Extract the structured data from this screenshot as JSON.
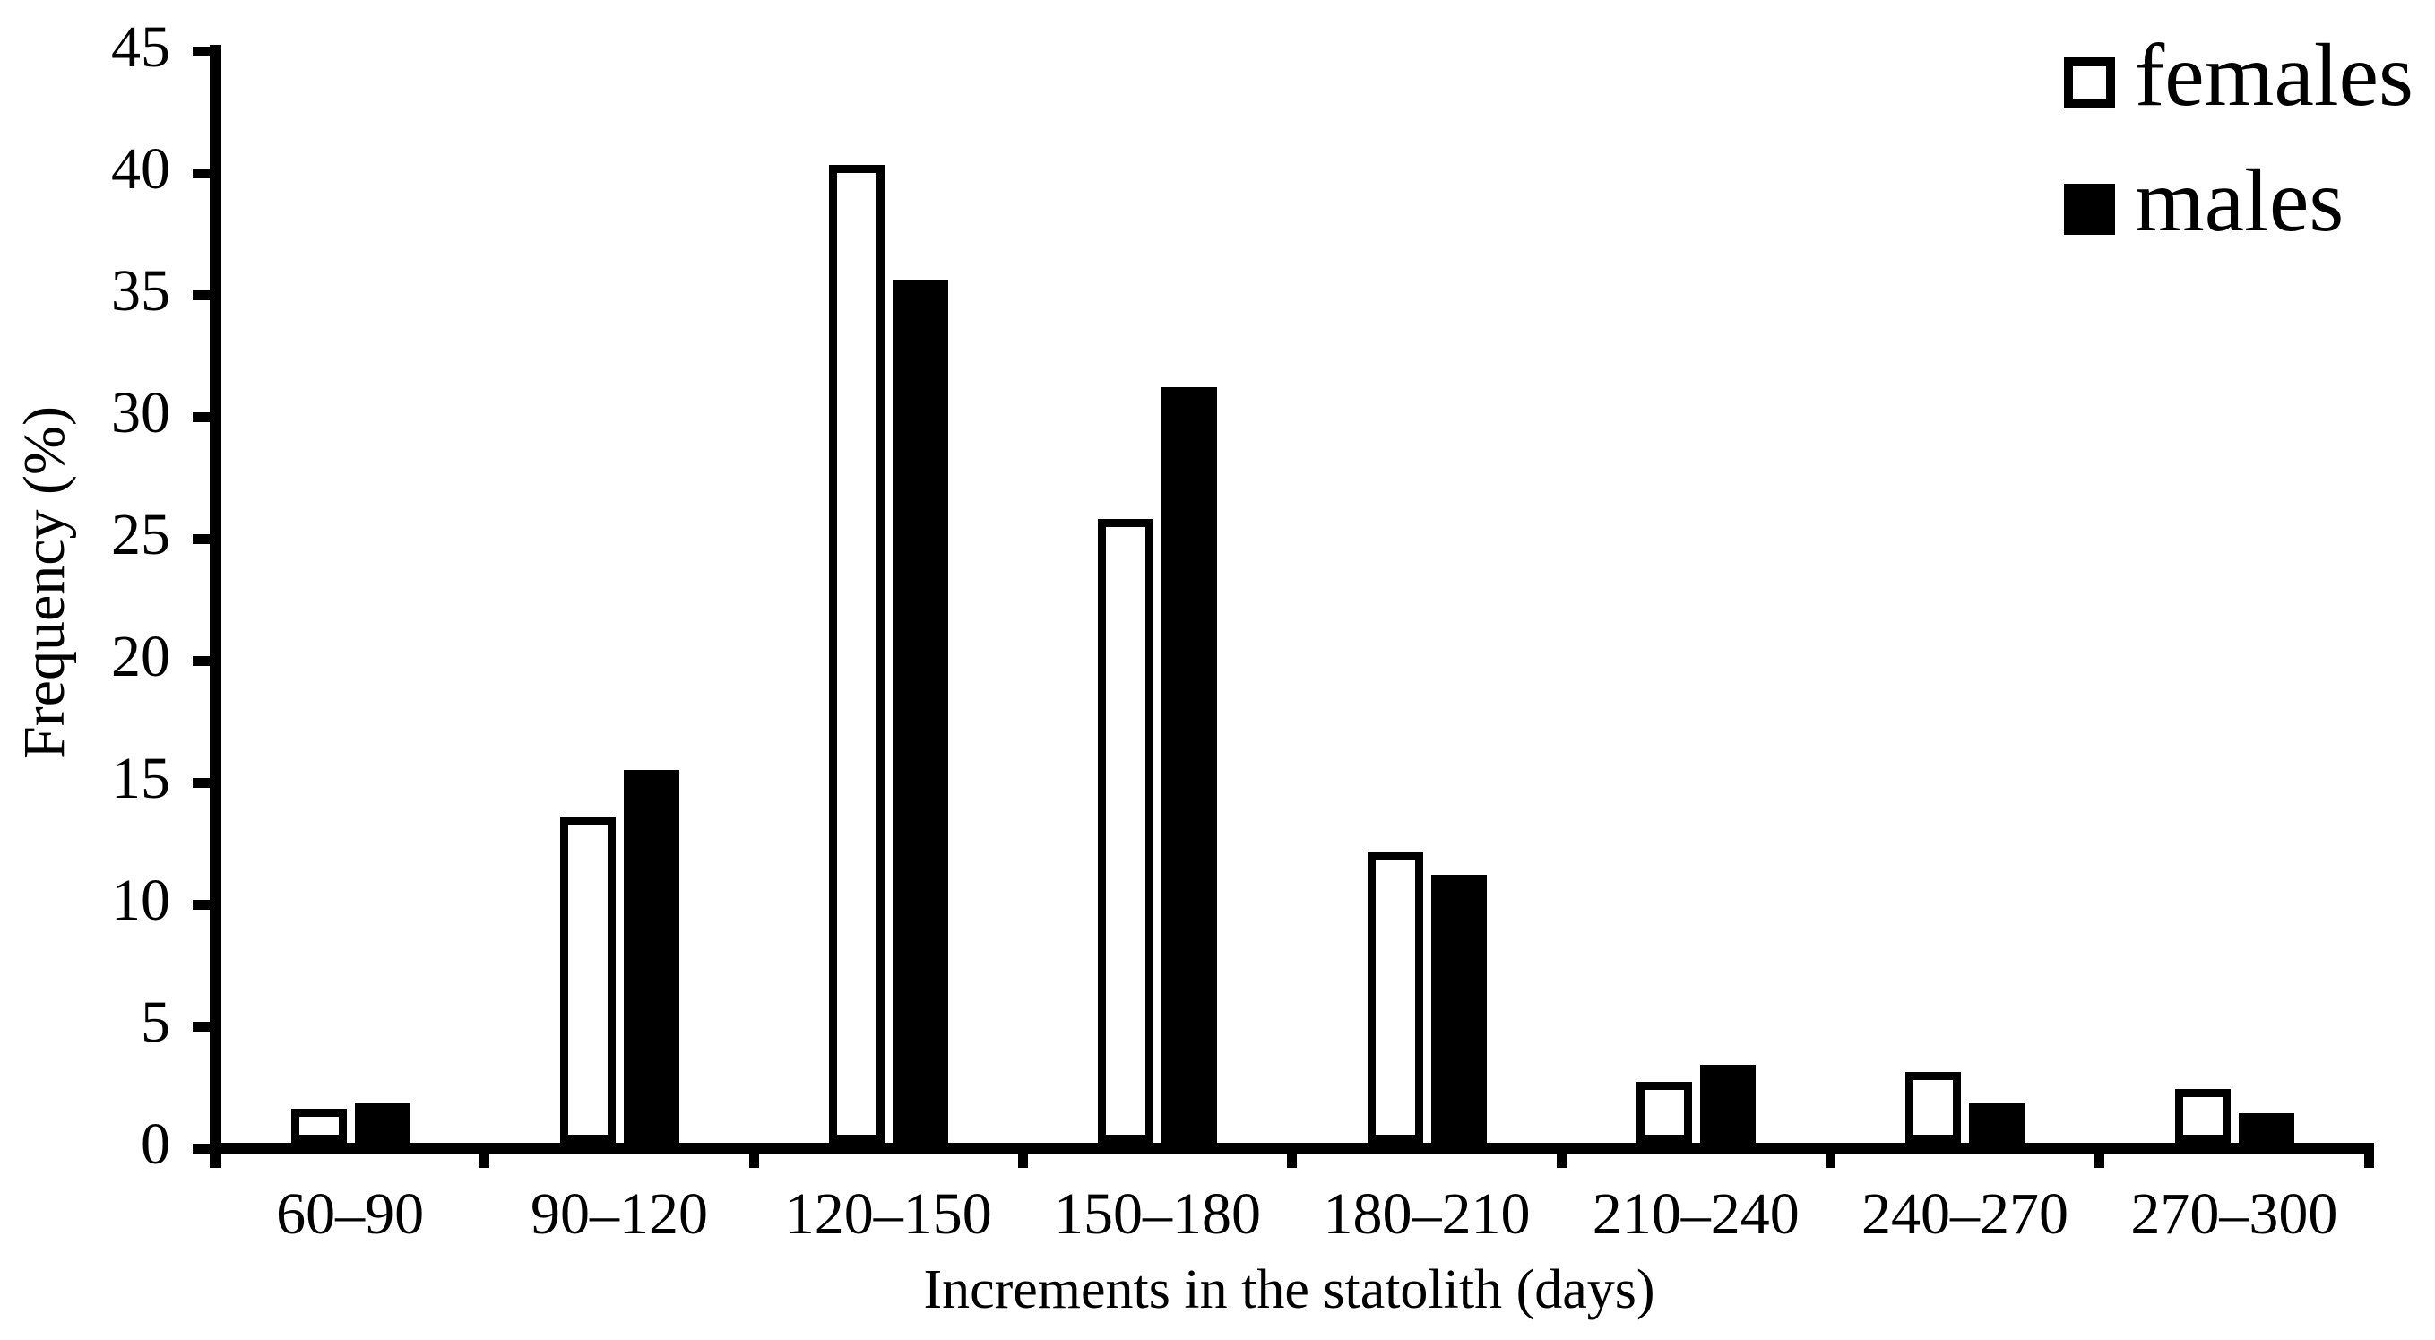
{
  "chart_data": {
    "type": "bar",
    "title": "",
    "xlabel": "Increments in the statolith (days)",
    "ylabel": "Frequency (%)",
    "categories": [
      "60–90",
      "90–120",
      "120–150",
      "150–180",
      "180–210",
      "210–240",
      "240–270",
      "270–300"
    ],
    "series": [
      {
        "name": "females",
        "style": "outlined-white",
        "values": [
          1.4,
          13.4,
          40.1,
          25.6,
          11.9,
          2.5,
          2.9,
          2.2
        ]
      },
      {
        "name": "males",
        "style": "solid-black",
        "values": [
          1.6,
          15.3,
          35.4,
          31.0,
          11.0,
          3.2,
          1.6,
          1.2
        ]
      }
    ],
    "y_ticks": [
      0,
      5,
      10,
      15,
      20,
      25,
      30,
      35,
      40,
      45
    ],
    "ylim": [
      0,
      45
    ],
    "grid": false,
    "legend_position": "top-right",
    "colors": {
      "background": "#ffffff",
      "text": "#000000",
      "axis": "#000000",
      "females_fill": "#ffffff",
      "females_outline": "#000000",
      "males_fill": "#000000"
    }
  }
}
